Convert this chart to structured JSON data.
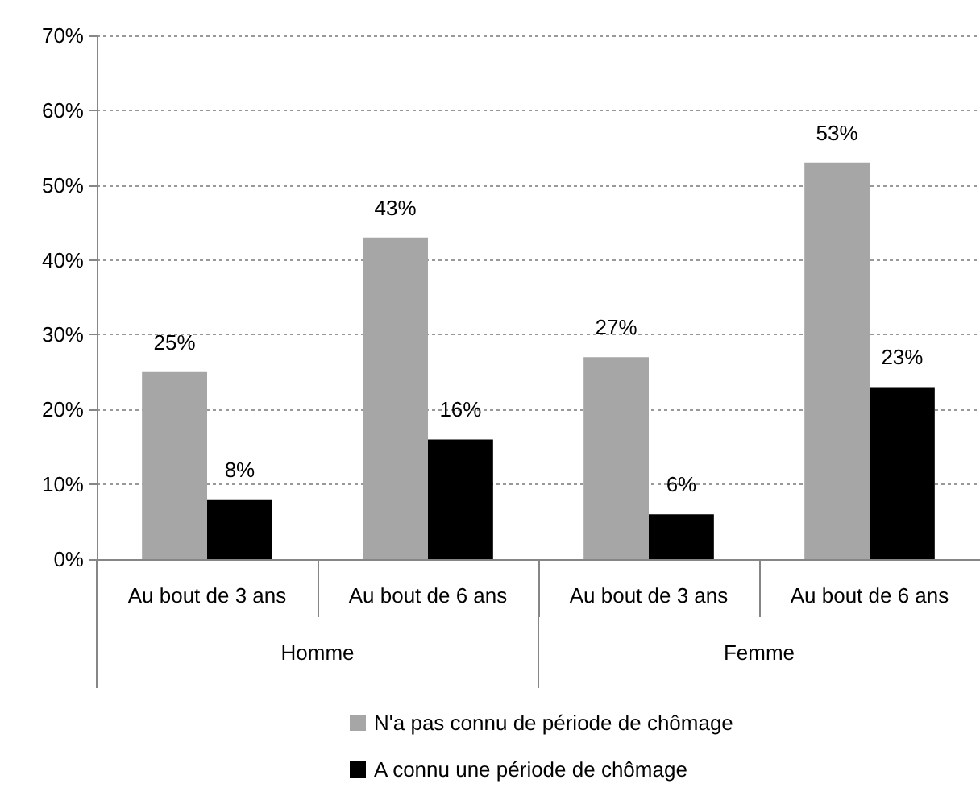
{
  "chart_data": {
    "type": "bar",
    "categories": [
      "Au bout de 3 ans",
      "Au bout de 6 ans",
      "Au bout de 3 ans",
      "Au bout de 6 ans"
    ],
    "annotations": [
      "Homme",
      "Femme"
    ],
    "series": [
      {
        "name": "N'a pas connu de période de chômage",
        "color": "#a6a6a6",
        "values": [
          25,
          43,
          27,
          53
        ],
        "value_labels": [
          "25%",
          "43%",
          "27%",
          "53%"
        ]
      },
      {
        "name": "A connu une période de chômage",
        "color": "#000000",
        "values": [
          8,
          16,
          6,
          23
        ],
        "value_labels": [
          "8%",
          "16%",
          "6%",
          "23%"
        ]
      }
    ],
    "ylim": [
      0,
      70
    ],
    "yticks": [
      {
        "value": 0,
        "label": "0%"
      },
      {
        "value": 10,
        "label": "10%"
      },
      {
        "value": 20,
        "label": "20%"
      },
      {
        "value": 30,
        "label": "30%"
      },
      {
        "value": 40,
        "label": "40%"
      },
      {
        "value": 50,
        "label": "50%"
      },
      {
        "value": 60,
        "label": "60%"
      },
      {
        "value": 70,
        "label": "70%"
      }
    ],
    "grid": "y",
    "legend": "bottom"
  }
}
